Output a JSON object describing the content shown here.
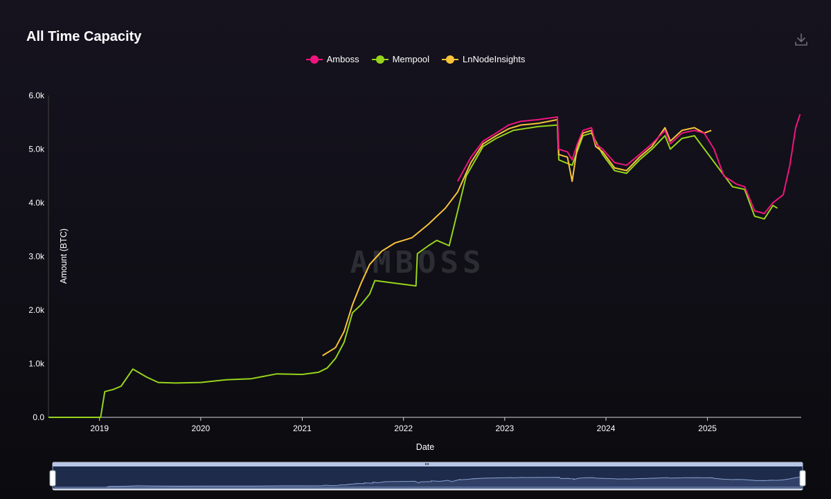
{
  "title": "All Time Capacity",
  "toolbar": {
    "download_icon": "download-icon"
  },
  "watermark": "AMBOSS",
  "legend": [
    {
      "label": "Amboss",
      "color": "#f0157e"
    },
    {
      "label": "Mempool",
      "color": "#97d51b"
    },
    {
      "label": "LnNodeInsights",
      "color": "#f8c53a"
    }
  ],
  "chart_data": {
    "type": "line",
    "xlabel": "Date",
    "ylabel": "Amount (BTC)",
    "x_range": [
      "2018-07-01",
      "2025-12-05"
    ],
    "ylim": [
      0,
      6000
    ],
    "y_ticks": [
      {
        "value": 0,
        "label": "0.0"
      },
      {
        "value": 1000,
        "label": "1.0k"
      },
      {
        "value": 2000,
        "label": "2.0k"
      },
      {
        "value": 3000,
        "label": "3.0k"
      },
      {
        "value": 4000,
        "label": "4.0k"
      },
      {
        "value": 5000,
        "label": "5.0k"
      },
      {
        "value": 6000,
        "label": "6.0k"
      }
    ],
    "x_ticks": [
      {
        "date": "2019-01-01",
        "label": "2019"
      },
      {
        "date": "2020-01-01",
        "label": "2020"
      },
      {
        "date": "2021-01-01",
        "label": "2021"
      },
      {
        "date": "2022-01-01",
        "label": "2022"
      },
      {
        "date": "2023-01-01",
        "label": "2023"
      },
      {
        "date": "2024-01-01",
        "label": "2024"
      },
      {
        "date": "2025-01-01",
        "label": "2025"
      }
    ],
    "grid": false,
    "legend_position": "top-center",
    "series": [
      {
        "name": "Amboss",
        "color": "#f0157e",
        "points": [
          [
            "2022-07-15",
            4400
          ],
          [
            "2022-09-01",
            4850
          ],
          [
            "2022-10-15",
            5150
          ],
          [
            "2022-12-01",
            5300
          ],
          [
            "2023-01-15",
            5450
          ],
          [
            "2023-03-01",
            5520
          ],
          [
            "2023-05-01",
            5550
          ],
          [
            "2023-07-10",
            5600
          ],
          [
            "2023-07-15",
            5000
          ],
          [
            "2023-08-15",
            4950
          ],
          [
            "2023-09-01",
            4800
          ],
          [
            "2023-09-20",
            5100
          ],
          [
            "2023-10-10",
            5350
          ],
          [
            "2023-11-10",
            5400
          ],
          [
            "2023-11-25",
            5100
          ],
          [
            "2023-12-20",
            5000
          ],
          [
            "2024-02-01",
            4750
          ],
          [
            "2024-03-15",
            4700
          ],
          [
            "2024-05-01",
            4900
          ],
          [
            "2024-06-15",
            5100
          ],
          [
            "2024-08-01",
            5350
          ],
          [
            "2024-08-20",
            5100
          ],
          [
            "2024-10-01",
            5300
          ],
          [
            "2024-11-15",
            5350
          ],
          [
            "2024-12-20",
            5300
          ],
          [
            "2025-01-25",
            5000
          ],
          [
            "2025-03-01",
            4500
          ],
          [
            "2025-04-15",
            4350
          ],
          [
            "2025-05-15",
            4300
          ],
          [
            "2025-06-20",
            3850
          ],
          [
            "2025-07-25",
            3800
          ],
          [
            "2025-08-25",
            4000
          ],
          [
            "2025-10-01",
            4150
          ],
          [
            "2025-10-25",
            4700
          ],
          [
            "2025-11-15",
            5400
          ],
          [
            "2025-12-01",
            5650
          ]
        ]
      },
      {
        "name": "Mempool",
        "color": "#97d51b",
        "points": [
          [
            "2018-07-01",
            0
          ],
          [
            "2019-01-05",
            0
          ],
          [
            "2019-01-20",
            480
          ],
          [
            "2019-02-20",
            520
          ],
          [
            "2019-03-20",
            580
          ],
          [
            "2019-05-01",
            900
          ],
          [
            "2019-06-20",
            750
          ],
          [
            "2019-08-01",
            650
          ],
          [
            "2019-10-01",
            640
          ],
          [
            "2020-01-01",
            650
          ],
          [
            "2020-04-01",
            700
          ],
          [
            "2020-07-01",
            720
          ],
          [
            "2020-10-01",
            810
          ],
          [
            "2021-01-01",
            800
          ],
          [
            "2021-03-01",
            840
          ],
          [
            "2021-04-01",
            920
          ],
          [
            "2021-05-01",
            1100
          ],
          [
            "2021-06-01",
            1400
          ],
          [
            "2021-07-01",
            1950
          ],
          [
            "2021-08-01",
            2100
          ],
          [
            "2021-09-01",
            2300
          ],
          [
            "2021-09-20",
            2550
          ],
          [
            "2022-02-15",
            2450
          ],
          [
            "2022-02-20",
            3050
          ],
          [
            "2022-04-01",
            3200
          ],
          [
            "2022-05-01",
            3300
          ],
          [
            "2022-06-15",
            3200
          ],
          [
            "2022-08-15",
            4500
          ],
          [
            "2022-10-15",
            5050
          ],
          [
            "2022-12-01",
            5200
          ],
          [
            "2023-02-01",
            5350
          ],
          [
            "2023-05-01",
            5420
          ],
          [
            "2023-07-10",
            5450
          ],
          [
            "2023-07-15",
            4800
          ],
          [
            "2023-09-01",
            4700
          ],
          [
            "2023-10-10",
            5250
          ],
          [
            "2023-11-10",
            5300
          ],
          [
            "2023-12-20",
            4900
          ],
          [
            "2024-02-01",
            4600
          ],
          [
            "2024-03-15",
            4550
          ],
          [
            "2024-05-01",
            4800
          ],
          [
            "2024-06-15",
            5000
          ],
          [
            "2024-08-01",
            5250
          ],
          [
            "2024-08-20",
            5000
          ],
          [
            "2024-10-01",
            5200
          ],
          [
            "2024-11-15",
            5250
          ],
          [
            "2025-04-01",
            4300
          ],
          [
            "2025-05-15",
            4250
          ],
          [
            "2025-06-20",
            3750
          ],
          [
            "2025-07-25",
            3700
          ],
          [
            "2025-08-25",
            3950
          ],
          [
            "2025-09-10",
            3900
          ]
        ]
      },
      {
        "name": "LnNodeInsights",
        "color": "#f8c53a",
        "points": [
          [
            "2021-03-15",
            1150
          ],
          [
            "2021-05-01",
            1300
          ],
          [
            "2021-06-01",
            1600
          ],
          [
            "2021-07-01",
            2100
          ],
          [
            "2021-08-01",
            2500
          ],
          [
            "2021-09-01",
            2850
          ],
          [
            "2021-10-15",
            3100
          ],
          [
            "2021-12-01",
            3250
          ],
          [
            "2022-02-01",
            3350
          ],
          [
            "2022-04-01",
            3600
          ],
          [
            "2022-06-01",
            3900
          ],
          [
            "2022-07-15",
            4200
          ],
          [
            "2022-09-01",
            4750
          ],
          [
            "2022-10-15",
            5100
          ],
          [
            "2022-12-01",
            5250
          ],
          [
            "2023-01-15",
            5380
          ],
          [
            "2023-03-01",
            5450
          ],
          [
            "2023-05-01",
            5480
          ],
          [
            "2023-07-10",
            5550
          ],
          [
            "2023-07-15",
            4900
          ],
          [
            "2023-08-15",
            4850
          ],
          [
            "2023-09-01",
            4400
          ],
          [
            "2023-09-20",
            5050
          ],
          [
            "2023-10-10",
            5300
          ],
          [
            "2023-11-10",
            5350
          ],
          [
            "2023-11-25",
            5050
          ],
          [
            "2023-12-20",
            4950
          ],
          [
            "2024-02-01",
            4650
          ],
          [
            "2024-03-15",
            4600
          ],
          [
            "2024-05-01",
            4850
          ],
          [
            "2024-06-15",
            5050
          ],
          [
            "2024-08-01",
            5400
          ],
          [
            "2024-08-20",
            5150
          ],
          [
            "2024-10-01",
            5350
          ],
          [
            "2024-11-15",
            5400
          ],
          [
            "2024-12-20",
            5300
          ],
          [
            "2025-01-15",
            5350
          ]
        ]
      }
    ],
    "overview": {
      "type": "area",
      "color": "#7f98c9"
    }
  }
}
